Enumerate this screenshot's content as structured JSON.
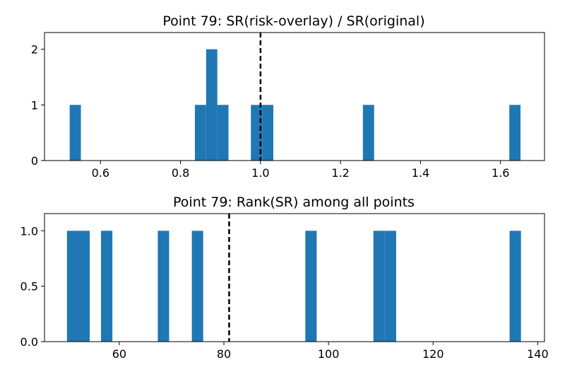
{
  "chart_data": [
    {
      "type": "bar",
      "subtype": "histogram",
      "title": "Point 79: SR(risk-overlay) / SR(original)",
      "xlabel": "",
      "ylabel": "",
      "xlim": [
        0.46,
        1.71
      ],
      "ylim": [
        0,
        2.3
      ],
      "xticks": [
        0.6,
        0.8,
        1.0,
        1.2,
        1.4,
        1.6
      ],
      "xtick_labels": [
        "0.6",
        "0.8",
        "1.0",
        "1.2",
        "1.4",
        "1.6"
      ],
      "yticks": [
        0,
        1,
        2
      ],
      "ytick_labels": [
        "0",
        "1",
        "2"
      ],
      "bin_width": 0.0281,
      "bins": [
        {
          "start": 0.523,
          "end": 0.551,
          "count": 1
        },
        {
          "start": 0.836,
          "end": 0.864,
          "count": 1
        },
        {
          "start": 0.864,
          "end": 0.892,
          "count": 2
        },
        {
          "start": 0.892,
          "end": 0.92,
          "count": 1
        },
        {
          "start": 0.976,
          "end": 1.004,
          "count": 1
        },
        {
          "start": 1.004,
          "end": 1.032,
          "count": 1
        },
        {
          "start": 1.256,
          "end": 1.284,
          "count": 1
        },
        {
          "start": 1.622,
          "end": 1.65,
          "count": 1
        }
      ],
      "reference_line": {
        "x": 1.0,
        "style": "dashed",
        "color": "#000000"
      },
      "bar_color": "#1f77b4",
      "grid": false
    },
    {
      "type": "bar",
      "subtype": "histogram",
      "title": "Point 79: Rank(SR) among all points",
      "xlabel": "",
      "ylabel": "",
      "xlim": [
        45.7,
        141.3
      ],
      "ylim": [
        0,
        1.155
      ],
      "xticks": [
        60,
        80,
        100,
        120,
        140
      ],
      "xtick_labels": [
        "60",
        "80",
        "100",
        "120",
        "140"
      ],
      "yticks": [
        0,
        0.5,
        1.0
      ],
      "ytick_labels": [
        "0.0",
        "0.5",
        "1.0"
      ],
      "bin_width": 2.17,
      "bins": [
        {
          "start": 50.0,
          "end": 52.17,
          "count": 1
        },
        {
          "start": 52.17,
          "end": 54.34,
          "count": 1
        },
        {
          "start": 56.51,
          "end": 58.68,
          "count": 1
        },
        {
          "start": 67.36,
          "end": 69.53,
          "count": 1
        },
        {
          "start": 73.87,
          "end": 76.04,
          "count": 1
        },
        {
          "start": 95.57,
          "end": 97.74,
          "count": 1
        },
        {
          "start": 108.59,
          "end": 110.76,
          "count": 1
        },
        {
          "start": 110.76,
          "end": 112.93,
          "count": 1
        },
        {
          "start": 134.63,
          "end": 136.8,
          "count": 1
        }
      ],
      "reference_line": {
        "x": 81,
        "style": "dashed",
        "color": "#000000"
      },
      "bar_color": "#1f77b4",
      "grid": false
    }
  ]
}
